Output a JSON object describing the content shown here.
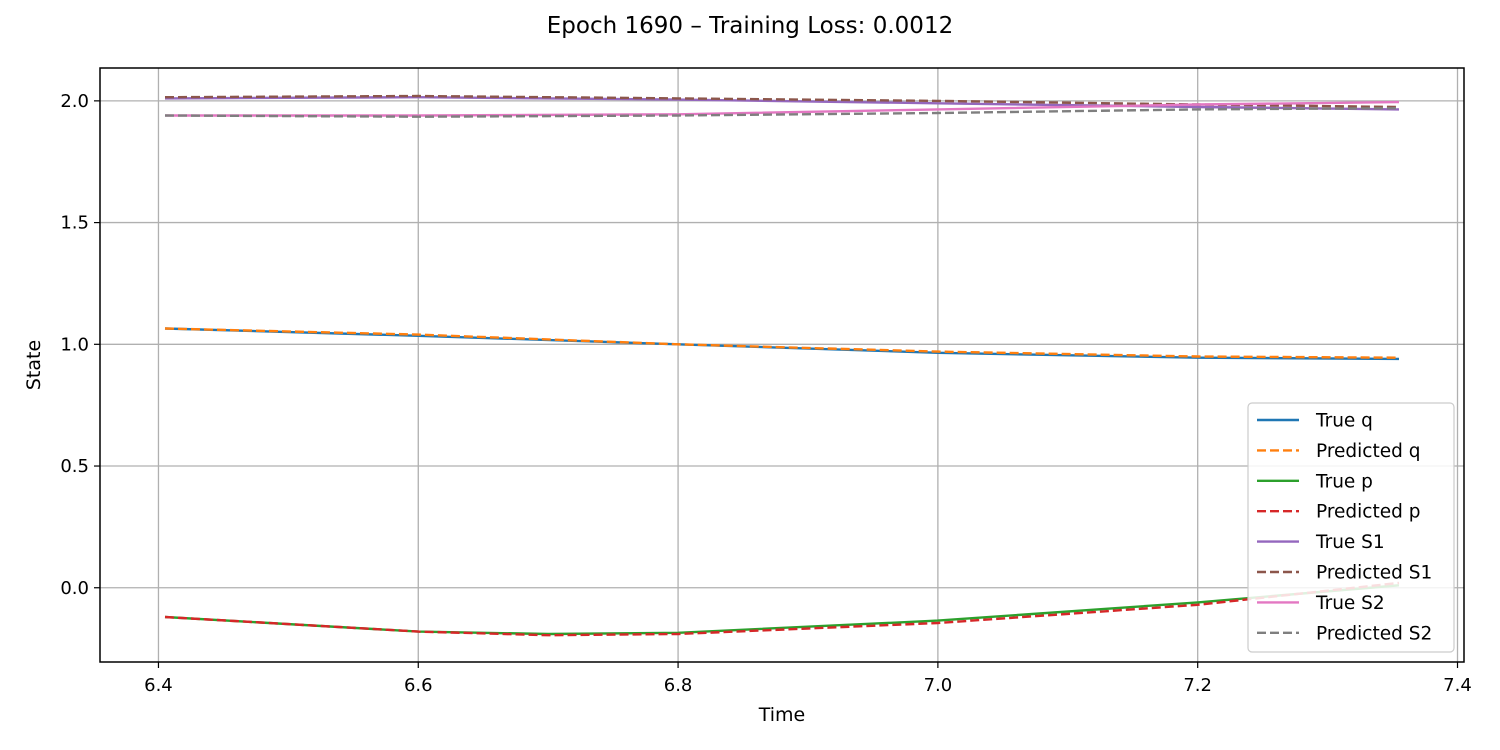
{
  "chart_data": {
    "type": "line",
    "title": "Epoch 1690 – Training Loss: 0.0012",
    "xlabel": "Time",
    "ylabel": "State",
    "xlim": [
      6.355,
      7.405
    ],
    "ylim": [
      -0.305,
      2.135
    ],
    "xticks": [
      6.4,
      6.6,
      6.8,
      7.0,
      7.2,
      7.4
    ],
    "xtick_labels": [
      "6.4",
      "6.6",
      "6.8",
      "7.0",
      "7.2",
      "7.4"
    ],
    "yticks": [
      0.0,
      0.5,
      1.0,
      1.5,
      2.0
    ],
    "ytick_labels": [
      "0.0",
      "0.5",
      "1.0",
      "1.5",
      "2.0"
    ],
    "grid": true,
    "legend_position": "lower-right",
    "series": [
      {
        "name": "True q",
        "color": "#1f77b4",
        "style": "solid",
        "x": [
          6.405,
          6.6,
          6.8,
          7.0,
          7.2,
          7.355
        ],
        "y": [
          1.065,
          1.035,
          1.0,
          0.965,
          0.945,
          0.94
        ]
      },
      {
        "name": "Predicted q",
        "color": "#ff7f0e",
        "style": "dashed",
        "x": [
          6.405,
          6.6,
          6.8,
          7.0,
          7.2,
          7.355
        ],
        "y": [
          1.065,
          1.04,
          1.0,
          0.97,
          0.95,
          0.945
        ]
      },
      {
        "name": "True p",
        "color": "#2ca02c",
        "style": "solid",
        "x": [
          6.405,
          6.6,
          6.7,
          6.8,
          7.0,
          7.2,
          7.355
        ],
        "y": [
          -0.12,
          -0.18,
          -0.19,
          -0.185,
          -0.135,
          -0.06,
          0.01
        ]
      },
      {
        "name": "Predicted p",
        "color": "#d62728",
        "style": "dashed",
        "x": [
          6.405,
          6.6,
          6.7,
          6.8,
          7.0,
          7.2,
          7.355
        ],
        "y": [
          -0.12,
          -0.18,
          -0.195,
          -0.19,
          -0.145,
          -0.07,
          0.02
        ]
      },
      {
        "name": "True S1",
        "color": "#9467bd",
        "style": "solid",
        "x": [
          6.405,
          6.6,
          6.8,
          7.0,
          7.2,
          7.355
        ],
        "y": [
          2.01,
          2.015,
          2.005,
          1.99,
          1.975,
          1.965
        ]
      },
      {
        "name": "Predicted S1",
        "color": "#8c564b",
        "style": "dashed",
        "x": [
          6.405,
          6.6,
          6.8,
          7.0,
          7.2,
          7.355
        ],
        "y": [
          2.015,
          2.02,
          2.01,
          2.0,
          1.985,
          1.975
        ]
      },
      {
        "name": "True S2",
        "color": "#e377c2",
        "style": "solid",
        "x": [
          6.405,
          6.6,
          6.8,
          7.0,
          7.2,
          7.355
        ],
        "y": [
          1.94,
          1.94,
          1.945,
          1.965,
          1.985,
          1.995
        ]
      },
      {
        "name": "Predicted S2",
        "color": "#7f7f7f",
        "style": "dashed",
        "x": [
          6.405,
          6.6,
          6.8,
          7.0,
          7.2,
          7.355
        ],
        "y": [
          1.94,
          1.935,
          1.94,
          1.95,
          1.965,
          1.97
        ]
      }
    ]
  }
}
